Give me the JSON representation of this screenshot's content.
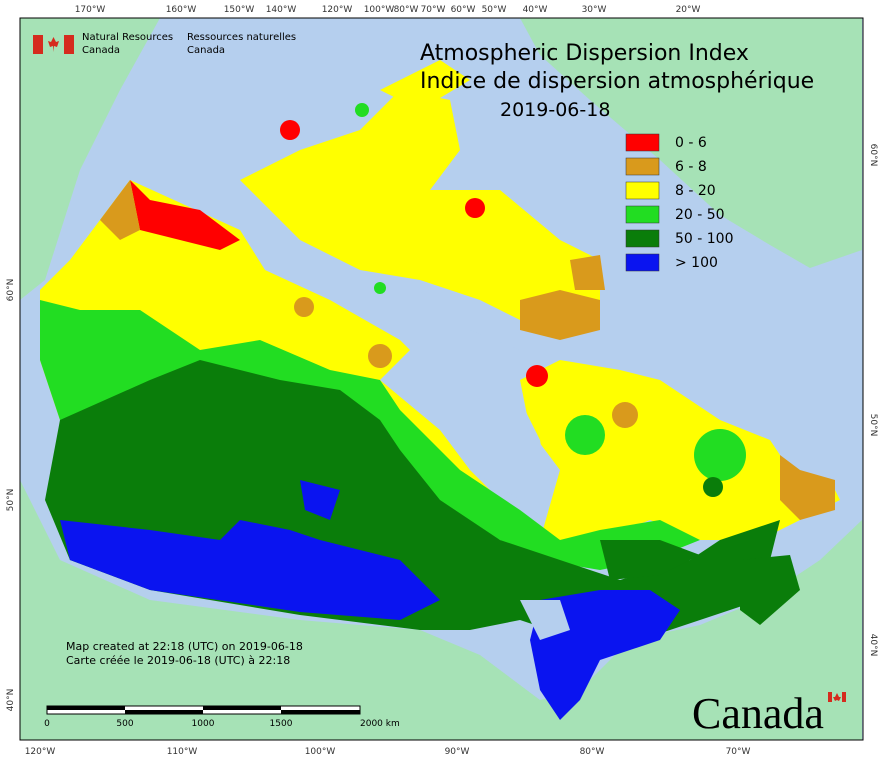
{
  "agency": {
    "en": [
      "Natural Resources",
      "Canada"
    ],
    "fr": [
      "Ressources naturelles",
      "Canada"
    ]
  },
  "title": {
    "en": "Atmospheric Dispersion Index",
    "fr": "Indice de dispersion atmosphérique",
    "date": "2019-06-18"
  },
  "legend": [
    {
      "label": "0 - 6",
      "color": "#ff0000"
    },
    {
      "label": "6 - 8",
      "color": "#d99a1c"
    },
    {
      "label": "8 - 20",
      "color": "#ffff00"
    },
    {
      "label": "20 - 50",
      "color": "#22dd22"
    },
    {
      "label": "50 - 100",
      "color": "#0a7d0a"
    },
    {
      "label": "> 100",
      "color": "#0a14f0"
    }
  ],
  "credits": [
    "Map created at 22:18 (UTC) on 2019-06-18",
    "Carte créée le 2019-06-18 (UTC) à 22:18"
  ],
  "scale_bar": [
    "0",
    "500",
    "1000",
    "1500",
    "2000 km"
  ],
  "graticule": {
    "top": [
      "170°W",
      "160°W",
      "150°W",
      "140°W",
      "120°W",
      "100°W",
      "80°W",
      "70°W",
      "60°W",
      "50°W",
      "40°W",
      "30°W",
      "20°W"
    ],
    "bottom": [
      "120°W",
      "110°W",
      "100°W",
      "90°W",
      "80°W",
      "70°W"
    ],
    "left": [
      "60°N",
      "50°N",
      "40°N"
    ],
    "right": [
      "60°N",
      "50°N",
      "40°N"
    ]
  },
  "wordmark": "Canada"
}
